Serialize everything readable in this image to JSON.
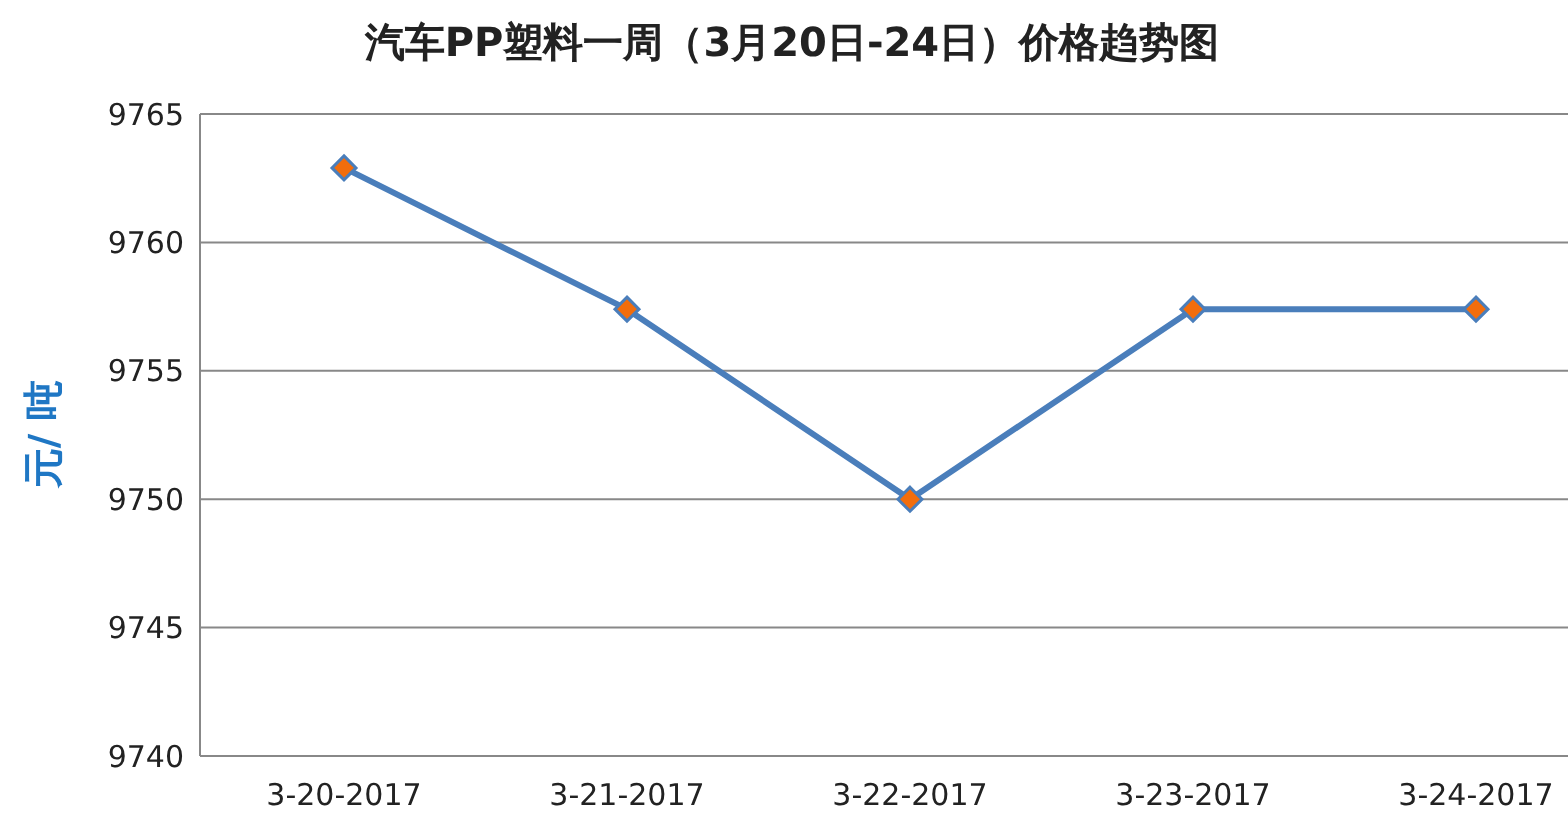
{
  "chart_data": {
    "type": "line",
    "title": "汽车PP塑料一周（3月20日-24日）价格趋势图",
    "ylabel": "元/ 吨",
    "categories": [
      "3-20-2017",
      "3-21-2017",
      "3-22-2017",
      "3-23-2017",
      "3-24-2017"
    ],
    "series": [
      {
        "color": "#4a7ebb",
        "values": [
          9762.9,
          9757.4,
          9750,
          9757.4,
          9757.4
        ]
      }
    ],
    "ylim": [
      9740,
      9765
    ],
    "yticks": [
      9740,
      9745,
      9750,
      9755,
      9760,
      9765
    ],
    "grid": "y",
    "marker": "diamond",
    "line_style": "solid"
  }
}
